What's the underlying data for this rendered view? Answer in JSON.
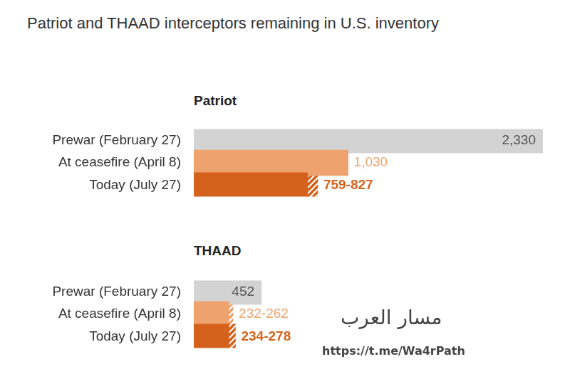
{
  "title": "Patriot and THAAD interceptors remaining in U.S. inventory",
  "annotations": [
    "مسار العرب",
    "https://t.me/Wa4rPath"
  ],
  "chart_data": [
    {
      "type": "bar",
      "title": "Patriot",
      "orientation": "horizontal",
      "categories": [
        "Prewar (February 27)",
        "At ceasefire (April 8)",
        "Today (July 27)"
      ],
      "values": [
        2330,
        1030,
        759
      ],
      "high": [
        null,
        null,
        827
      ],
      "value_labels": [
        "2,330",
        "1,030",
        "759-827"
      ],
      "colors": [
        "#d3d3d3",
        "#eea36e",
        "#d4621c"
      ],
      "xlim": [
        0,
        2330
      ],
      "grid": false,
      "tick_labels": "y",
      "data_labels": true
    },
    {
      "type": "bar",
      "title": "THAAD",
      "orientation": "horizontal",
      "categories": [
        "Prewar (February 27)",
        "At ceasefire (April 8)",
        "Today (July 27)"
      ],
      "values": [
        452,
        232,
        234
      ],
      "high": [
        null,
        262,
        278
      ],
      "value_labels": [
        "452",
        "232-262",
        "234-278"
      ],
      "colors": [
        "#d3d3d3",
        "#eea36e",
        "#d4621c"
      ],
      "xlim": [
        0,
        2330
      ],
      "grid": false,
      "tick_labels": "y",
      "data_labels": true
    }
  ]
}
